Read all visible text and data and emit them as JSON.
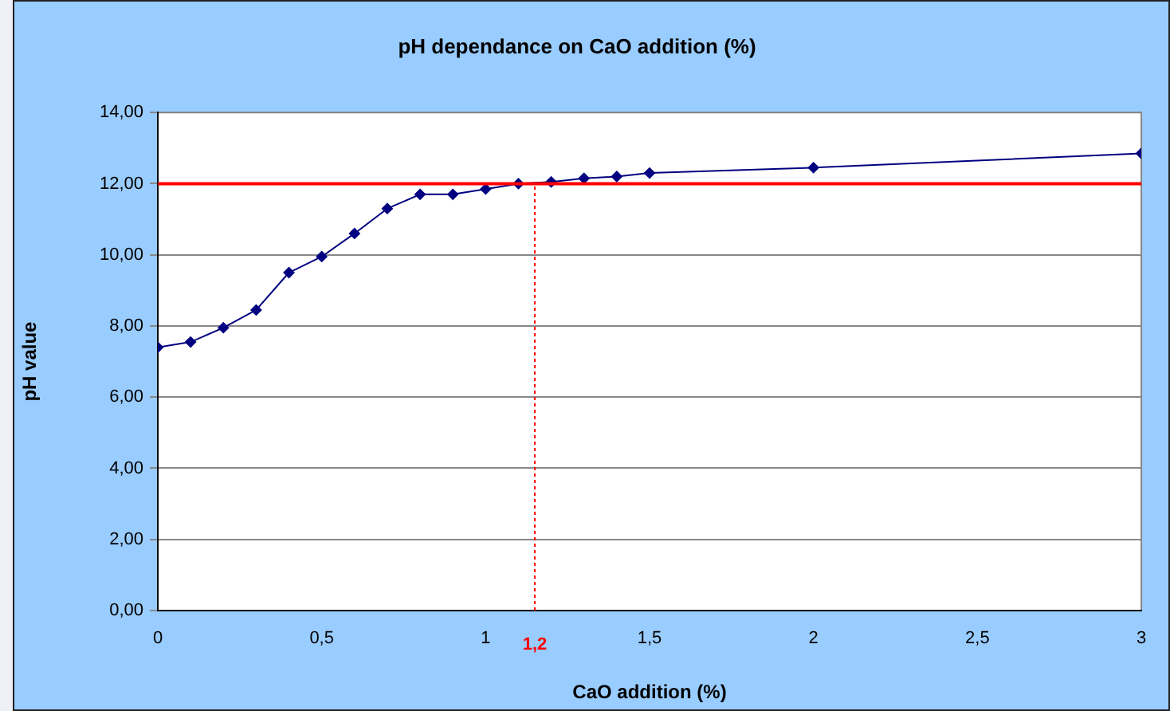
{
  "chart_data": {
    "type": "line",
    "title": "pH dependance on CaO addition (%)",
    "xlabel": "CaO addition (%)",
    "ylabel": "pH value",
    "x": [
      0,
      0.1,
      0.2,
      0.3,
      0.4,
      0.5,
      0.6,
      0.7,
      0.8,
      0.9,
      1.0,
      1.1,
      1.2,
      1.3,
      1.4,
      1.5,
      2,
      3
    ],
    "series": [
      {
        "color": "#000080",
        "values": [
          7.4,
          7.55,
          7.95,
          8.45,
          9.5,
          9.95,
          10.6,
          11.3,
          11.7,
          11.7,
          11.85,
          12.0,
          12.05,
          12.15,
          12.2,
          12.3,
          12.45,
          12.85
        ]
      }
    ],
    "xlim": [
      0,
      3
    ],
    "xticks": [
      0,
      {
        "value": 0.5,
        "label": "0,5"
      },
      1,
      {
        "value": 1.5,
        "label": "1,5"
      },
      2,
      {
        "value": 2.5,
        "label": "2,5"
      },
      3
    ],
    "ylim": [
      0,
      14
    ],
    "yticks": [
      {
        "value": 0,
        "label": "0,00"
      },
      {
        "value": 2,
        "label": "2,00"
      },
      {
        "value": 4,
        "label": "4,00"
      },
      {
        "value": 6,
        "label": "6,00"
      },
      {
        "value": 8,
        "label": "8,00"
      },
      {
        "value": 10,
        "label": "10,00"
      },
      {
        "value": 12,
        "label": "12,00"
      },
      {
        "value": 14,
        "label": "14,00"
      }
    ],
    "ref_lines": [
      {
        "axis": "y",
        "value": 12,
        "color": "#ff0000",
        "line_style": "solid"
      },
      {
        "axis": "x",
        "value": 1.15,
        "label": "1,2",
        "color": "#ff0000",
        "line_style": "dotted"
      }
    ],
    "grid": "y",
    "legend": false,
    "marker": "diamond",
    "line_style": "solid"
  }
}
